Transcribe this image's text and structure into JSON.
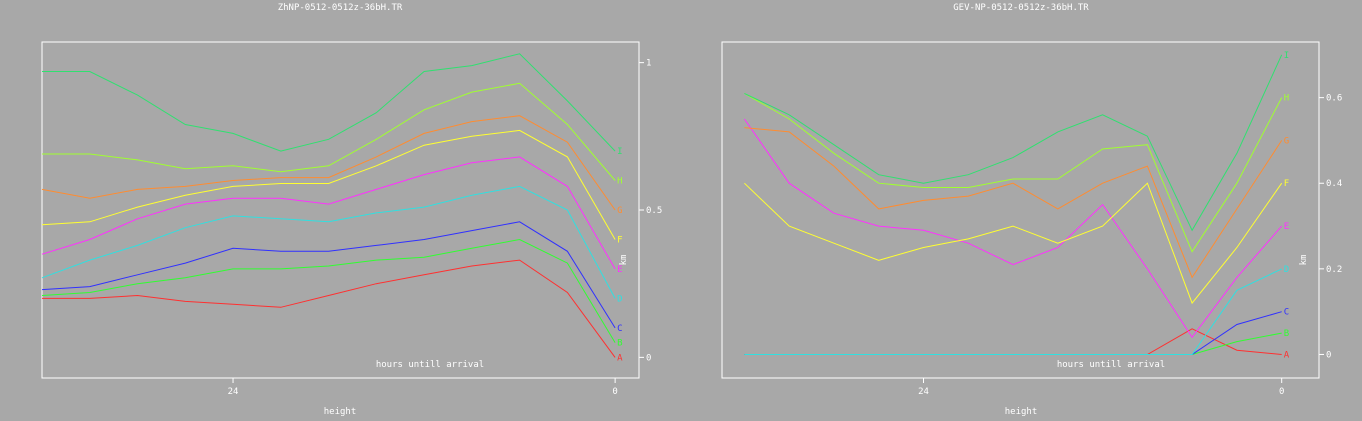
{
  "chart_data": [
    {
      "type": "line",
      "title": "ZhNP-0512-0512z-36bH.TR",
      "xlabel": "height",
      "ylabel": "km",
      "annotation": "hours untill arrival",
      "xlim": [
        36,
        -1.5
      ],
      "ylim": [
        -0.07,
        1.07
      ],
      "x_ticks": [
        24,
        0
      ],
      "y_ticks": [
        {
          "value": 0,
          "label": "0"
        },
        {
          "value": 0.5,
          "label": "0.5"
        },
        {
          "value": 1,
          "label": "1"
        }
      ],
      "x": [
        36,
        33,
        30,
        27,
        24,
        21,
        18,
        15,
        12,
        9,
        6,
        3,
        0
      ],
      "series": [
        {
          "name": "A",
          "color": "#ff3030",
          "values": [
            0.2,
            0.2,
            0.21,
            0.19,
            0.18,
            0.17,
            0.21,
            0.25,
            0.28,
            0.31,
            0.33,
            0.22,
            0.0
          ]
        },
        {
          "name": "B",
          "color": "#30ff30",
          "values": [
            0.21,
            0.22,
            0.25,
            0.27,
            0.3,
            0.3,
            0.31,
            0.33,
            0.34,
            0.37,
            0.4,
            0.32,
            0.05
          ]
        },
        {
          "name": "C",
          "color": "#3030ff",
          "values": [
            0.23,
            0.24,
            0.28,
            0.32,
            0.37,
            0.36,
            0.36,
            0.38,
            0.4,
            0.43,
            0.46,
            0.36,
            0.1
          ]
        },
        {
          "name": "D",
          "color": "#30e0e0",
          "values": [
            0.27,
            0.33,
            0.38,
            0.44,
            0.48,
            0.47,
            0.46,
            0.49,
            0.51,
            0.55,
            0.58,
            0.5,
            0.2
          ]
        },
        {
          "name": "E",
          "color": "#ff30ff",
          "values": [
            0.35,
            0.4,
            0.47,
            0.52,
            0.54,
            0.54,
            0.52,
            0.57,
            0.62,
            0.66,
            0.68,
            0.58,
            0.3
          ]
        },
        {
          "name": "F",
          "color": "#ffff30",
          "values": [
            0.45,
            0.46,
            0.51,
            0.55,
            0.58,
            0.59,
            0.59,
            0.65,
            0.72,
            0.75,
            0.77,
            0.68,
            0.4
          ]
        },
        {
          "name": "G",
          "color": "#ff8c30",
          "values": [
            0.57,
            0.54,
            0.57,
            0.58,
            0.6,
            0.61,
            0.61,
            0.68,
            0.76,
            0.8,
            0.82,
            0.73,
            0.5
          ]
        },
        {
          "name": "H",
          "color": "#a0ff30",
          "values": [
            0.69,
            0.69,
            0.67,
            0.64,
            0.65,
            0.63,
            0.65,
            0.74,
            0.84,
            0.9,
            0.93,
            0.79,
            0.6
          ]
        },
        {
          "name": "I",
          "color": "#30e070",
          "values": [
            0.97,
            0.97,
            0.89,
            0.79,
            0.76,
            0.7,
            0.74,
            0.83,
            0.97,
            0.99,
            1.03,
            0.87,
            0.7
          ]
        }
      ]
    },
    {
      "type": "line",
      "title": "GEV-NP-0512-0512z-36bH.TR",
      "xlabel": "height",
      "ylabel": "km",
      "annotation": "hours untill arrival",
      "xlim": [
        37.5,
        -2.5
      ],
      "ylim": [
        -0.055,
        0.73
      ],
      "x_ticks": [
        24,
        0
      ],
      "y_ticks": [
        {
          "value": 0,
          "label": "0"
        },
        {
          "value": 0.2,
          "label": "0.2"
        },
        {
          "value": 0.4,
          "label": "0.4"
        },
        {
          "value": 0.6,
          "label": "0.6"
        }
      ],
      "x": [
        36,
        33,
        30,
        27,
        24,
        21,
        18,
        15,
        12,
        9,
        6,
        3,
        0
      ],
      "series": [
        {
          "name": "A",
          "color": "#ff3030",
          "values": [
            0.0,
            0.0,
            0.0,
            0.0,
            0.0,
            0.0,
            0.0,
            0.0,
            0.0,
            0.0,
            0.06,
            0.01,
            0.0
          ]
        },
        {
          "name": "B",
          "color": "#30ff30",
          "values": [
            0.0,
            0.0,
            0.0,
            0.0,
            0.0,
            0.0,
            0.0,
            0.0,
            0.0,
            0.0,
            0.0,
            0.03,
            0.05
          ]
        },
        {
          "name": "C",
          "color": "#3030ff",
          "values": [
            0.0,
            0.0,
            0.0,
            0.0,
            0.0,
            0.0,
            0.0,
            0.0,
            0.0,
            0.0,
            0.0,
            0.07,
            0.1
          ]
        },
        {
          "name": "D",
          "color": "#30e0e0",
          "values": [
            0.0,
            0.0,
            0.0,
            0.0,
            0.0,
            0.0,
            0.0,
            0.0,
            0.0,
            0.0,
            0.0,
            0.15,
            0.2
          ]
        },
        {
          "name": "E",
          "color": "#ff30ff",
          "values": [
            0.55,
            0.4,
            0.33,
            0.3,
            0.29,
            0.26,
            0.21,
            0.25,
            0.35,
            0.2,
            0.04,
            0.18,
            0.3
          ]
        },
        {
          "name": "F",
          "color": "#ffff30",
          "values": [
            0.4,
            0.3,
            0.26,
            0.22,
            0.25,
            0.27,
            0.3,
            0.26,
            0.3,
            0.4,
            0.12,
            0.25,
            0.4
          ]
        },
        {
          "name": "G",
          "color": "#ff8c30",
          "values": [
            0.53,
            0.52,
            0.44,
            0.34,
            0.36,
            0.37,
            0.4,
            0.34,
            0.4,
            0.44,
            0.18,
            0.34,
            0.5
          ]
        },
        {
          "name": "H",
          "color": "#a0ff30",
          "values": [
            0.61,
            0.55,
            0.47,
            0.4,
            0.39,
            0.39,
            0.41,
            0.41,
            0.48,
            0.49,
            0.24,
            0.4,
            0.6
          ]
        },
        {
          "name": "I",
          "color": "#30e070",
          "values": [
            0.61,
            0.56,
            0.49,
            0.42,
            0.4,
            0.42,
            0.46,
            0.52,
            0.56,
            0.51,
            0.29,
            0.47,
            0.7
          ]
        }
      ]
    }
  ]
}
